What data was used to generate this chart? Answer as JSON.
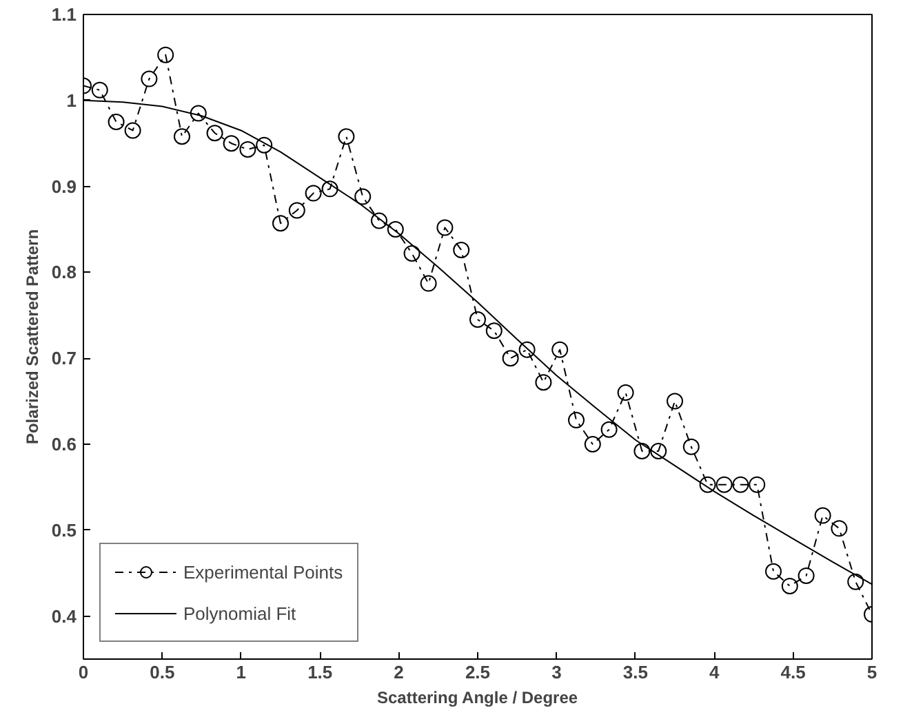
{
  "chart_data": {
    "type": "line",
    "xlabel": "Scattering Angle / Degree",
    "ylabel": "Polarized Scattered Pattern",
    "xlim": [
      0,
      5
    ],
    "ylim": [
      0.35,
      1.1
    ],
    "xticks": [
      0,
      0.5,
      1,
      1.5,
      2,
      2.5,
      3,
      3.5,
      4,
      4.5,
      5
    ],
    "yticks": [
      0.4,
      0.5,
      0.6,
      0.7,
      0.8,
      0.9,
      1,
      1.1
    ],
    "grid": false,
    "legend": "bottom left",
    "series": [
      {
        "name": "Experimental Points",
        "color": "#000000",
        "marker": "circle",
        "line_style": "dashdot",
        "x": [
          0,
          0.104,
          0.208,
          0.313,
          0.417,
          0.521,
          0.625,
          0.729,
          0.833,
          0.938,
          1.042,
          1.146,
          1.25,
          1.354,
          1.458,
          1.563,
          1.667,
          1.771,
          1.875,
          1.979,
          2.083,
          2.188,
          2.292,
          2.396,
          2.5,
          2.604,
          2.708,
          2.813,
          2.917,
          3.021,
          3.125,
          3.229,
          3.333,
          3.438,
          3.542,
          3.646,
          3.75,
          3.854,
          3.958,
          4.063,
          4.167,
          4.271,
          4.375,
          4.479,
          4.583,
          4.688,
          4.792,
          4.896,
          5
        ],
        "values": [
          1.017,
          1.012,
          0.975,
          0.965,
          1.025,
          1.053,
          0.958,
          0.985,
          0.962,
          0.95,
          0.943,
          0.948,
          0.857,
          0.872,
          0.892,
          0.897,
          0.958,
          0.888,
          0.86,
          0.85,
          0.822,
          0.787,
          0.852,
          0.826,
          0.745,
          0.732,
          0.7,
          0.71,
          0.672,
          0.71,
          0.628,
          0.6,
          0.617,
          0.66,
          0.592,
          0.592,
          0.65,
          0.597,
          0.553,
          0.553,
          0.553,
          0.553,
          0.452,
          0.435,
          0.447,
          0.517,
          0.502,
          0.44,
          0.402
        ]
      },
      {
        "name": "Polynomial Fit",
        "color": "#000000",
        "marker": "none",
        "line_style": "solid",
        "x": [
          0,
          0.25,
          0.5,
          0.75,
          1,
          1.25,
          1.5,
          1.75,
          2,
          2.25,
          2.5,
          2.75,
          3,
          3.25,
          3.5,
          3.75,
          4,
          4.25,
          4.5,
          4.75,
          5
        ],
        "values": [
          1.0,
          0.998,
          0.993,
          0.982,
          0.965,
          0.94,
          0.91,
          0.88,
          0.845,
          0.806,
          0.765,
          0.722,
          0.68,
          0.642,
          0.605,
          0.575,
          0.545,
          0.517,
          0.49,
          0.463,
          0.437
        ]
      }
    ]
  }
}
